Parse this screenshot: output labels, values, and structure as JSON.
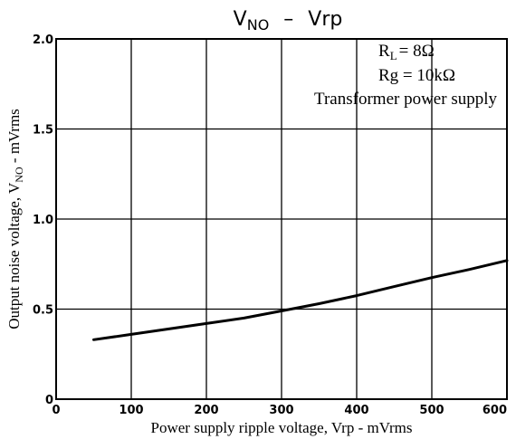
{
  "chart_data": {
    "type": "line",
    "title": {
      "main": "V",
      "main_sub": "NO",
      "separator": "–",
      "rest": "Vrp"
    },
    "xlabel": "Power supply ripple voltage, Vrp - mVrms",
    "ylabel": {
      "prefix": "Output noise voltage, V",
      "sub": "NO",
      "suffix": " - mVrms"
    },
    "xlim": [
      0,
      600
    ],
    "ylim": [
      0,
      2.0
    ],
    "x_ticks": [
      {
        "value": 0,
        "label": "0"
      },
      {
        "value": 100,
        "label": "100"
      },
      {
        "value": 200,
        "label": "200"
      },
      {
        "value": 300,
        "label": "300"
      },
      {
        "value": 400,
        "label": "400"
      },
      {
        "value": 500,
        "label": "500"
      },
      {
        "value": 600,
        "label": "600"
      }
    ],
    "y_ticks": [
      {
        "value": 0,
        "label": "0"
      },
      {
        "value": 0.5,
        "label": "0.5"
      },
      {
        "value": 1.0,
        "label": "1.0"
      },
      {
        "value": 1.5,
        "label": "1.5"
      },
      {
        "value": 2.0,
        "label": "2.0"
      }
    ],
    "grid": true,
    "annotations": {
      "rl": {
        "main": "R",
        "sub": "L",
        "rest": "= 8Ω"
      },
      "rg": "Rg = 10kΩ",
      "supply": "Transformer power supply"
    },
    "series": [
      {
        "color": "#000000",
        "x": [
          50,
          100,
          150,
          200,
          250,
          300,
          350,
          400,
          450,
          500,
          550,
          600
        ],
        "y": [
          0.33,
          0.36,
          0.39,
          0.42,
          0.45,
          0.49,
          0.53,
          0.575,
          0.625,
          0.675,
          0.72,
          0.77
        ]
      }
    ]
  }
}
